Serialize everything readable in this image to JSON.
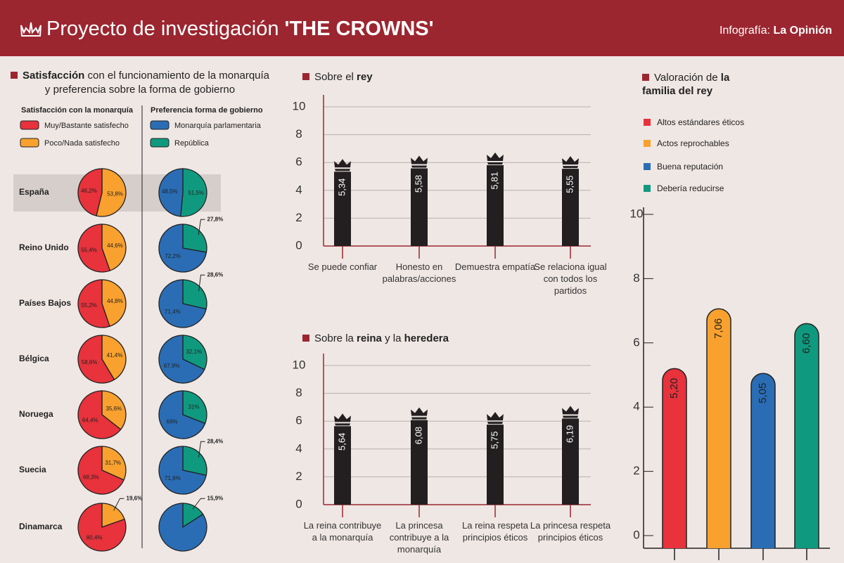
{
  "header": {
    "title": "Proyecto de investigación",
    "title_bold": "'THE CROWNS'",
    "credit": "Infografía:",
    "credit_bold": "La Opinión"
  },
  "chart_data": [
    {
      "type": "pie",
      "title": [
        "Satisfacción",
        "con el funcionamiento de la monarquía y preferencia sobre la forma de gobierno"
      ],
      "categories": [
        "España",
        "Reino Unido",
        "Países Bajos",
        "Bélgica",
        "Noruega",
        "Suecia",
        "Dinamarca"
      ],
      "groups": [
        {
          "title": "Satisfacción con la monarquía",
          "series": [
            {
              "name": "Muy/Bastante satisfecho",
              "color": "#e8323c",
              "values": [
                46.2,
                55.4,
                55.2,
                58.6,
                64.4,
                68.3,
                80.4
              ],
              "value_labels": [
                "46,2%",
                "55,4%",
                "55,2%",
                "58,6%",
                "64,4%",
                "68,3%",
                "80,4%"
              ]
            },
            {
              "name": "Poco/Nada satisfecho",
              "color": "#f9a12e",
              "values": [
                53.8,
                44.6,
                44.8,
                41.4,
                35.6,
                31.7,
                19.6
              ],
              "value_labels": [
                "53,8%",
                "44,6%",
                "44,8%",
                "41,4%",
                "35,6%",
                "31,7%",
                "19,6%"
              ]
            }
          ]
        },
        {
          "title": "Preferencia forma de gobierno",
          "series": [
            {
              "name": "Monarquía parlamentaria",
              "color": "#2a6db5",
              "values": [
                48.5,
                72.2,
                71.4,
                67.9,
                69,
                71.6,
                84.1
              ],
              "value_labels": [
                "48,5%",
                "72,2%",
                "71,4%",
                "67,9%",
                "69%",
                "71,6%",
                null
              ]
            },
            {
              "name": "República",
              "color": "#0f9a7f",
              "values": [
                51.5,
                27.8,
                28.6,
                32.1,
                31,
                28.4,
                15.9
              ],
              "value_labels": [
                "51,5%",
                "27,8%",
                "28,6%",
                "32,1%",
                "31%",
                "28,4%",
                "15,9%"
              ]
            }
          ]
        }
      ]
    },
    {
      "type": "bar",
      "title": [
        "Sobre el",
        "rey"
      ],
      "categories": [
        "Se puede confiar",
        "Honesto en palabras/acciones",
        "Demuestra empatía",
        "Se relaciona igual con todos los partidos"
      ],
      "values": [
        5.34,
        5.58,
        5.81,
        5.55
      ],
      "value_labels": [
        "5,34",
        "5,58",
        "5,81",
        "5,55"
      ],
      "color": "#231f20",
      "ylim": [
        0,
        10
      ],
      "yticks": [
        0,
        2,
        4,
        6,
        8,
        10
      ],
      "grid": true
    },
    {
      "type": "bar",
      "title": [
        "Sobre la",
        "reina",
        "y la",
        "heredera"
      ],
      "categories": [
        "La reina contribuye a la monarquía",
        "La princesa contribuye a la monarquía",
        "La reina respeta principios éticos",
        "La princesa respeta principios éticos"
      ],
      "values": [
        5.64,
        6.08,
        5.75,
        6.19
      ],
      "value_labels": [
        "5,64",
        "6,08",
        "5,75",
        "6,19"
      ],
      "color": "#231f20",
      "ylim": [
        0,
        10
      ],
      "yticks": [
        0,
        2,
        4,
        6,
        8,
        10
      ],
      "grid": true
    },
    {
      "type": "bar",
      "title": [
        "Valoración de",
        "la familia del rey"
      ],
      "series": [
        {
          "name": "Altos estándares éticos",
          "color": "#e8323c",
          "values": [
            5.2
          ],
          "value_labels": [
            "5,20"
          ]
        },
        {
          "name": "Actos reprochables",
          "color": "#f9a12e",
          "values": [
            7.06
          ],
          "value_labels": [
            "7,06"
          ]
        },
        {
          "name": "Buena reputación",
          "color": "#2a6db5",
          "values": [
            5.05
          ],
          "value_labels": [
            "5,05"
          ]
        },
        {
          "name": "Debería reducirse",
          "color": "#0f9a7f",
          "values": [
            6.6
          ],
          "value_labels": [
            "6,60"
          ]
        }
      ],
      "ylim": [
        0,
        10
      ],
      "yticks": [
        0,
        2,
        4,
        6,
        8,
        10
      ],
      "grid": false
    }
  ]
}
